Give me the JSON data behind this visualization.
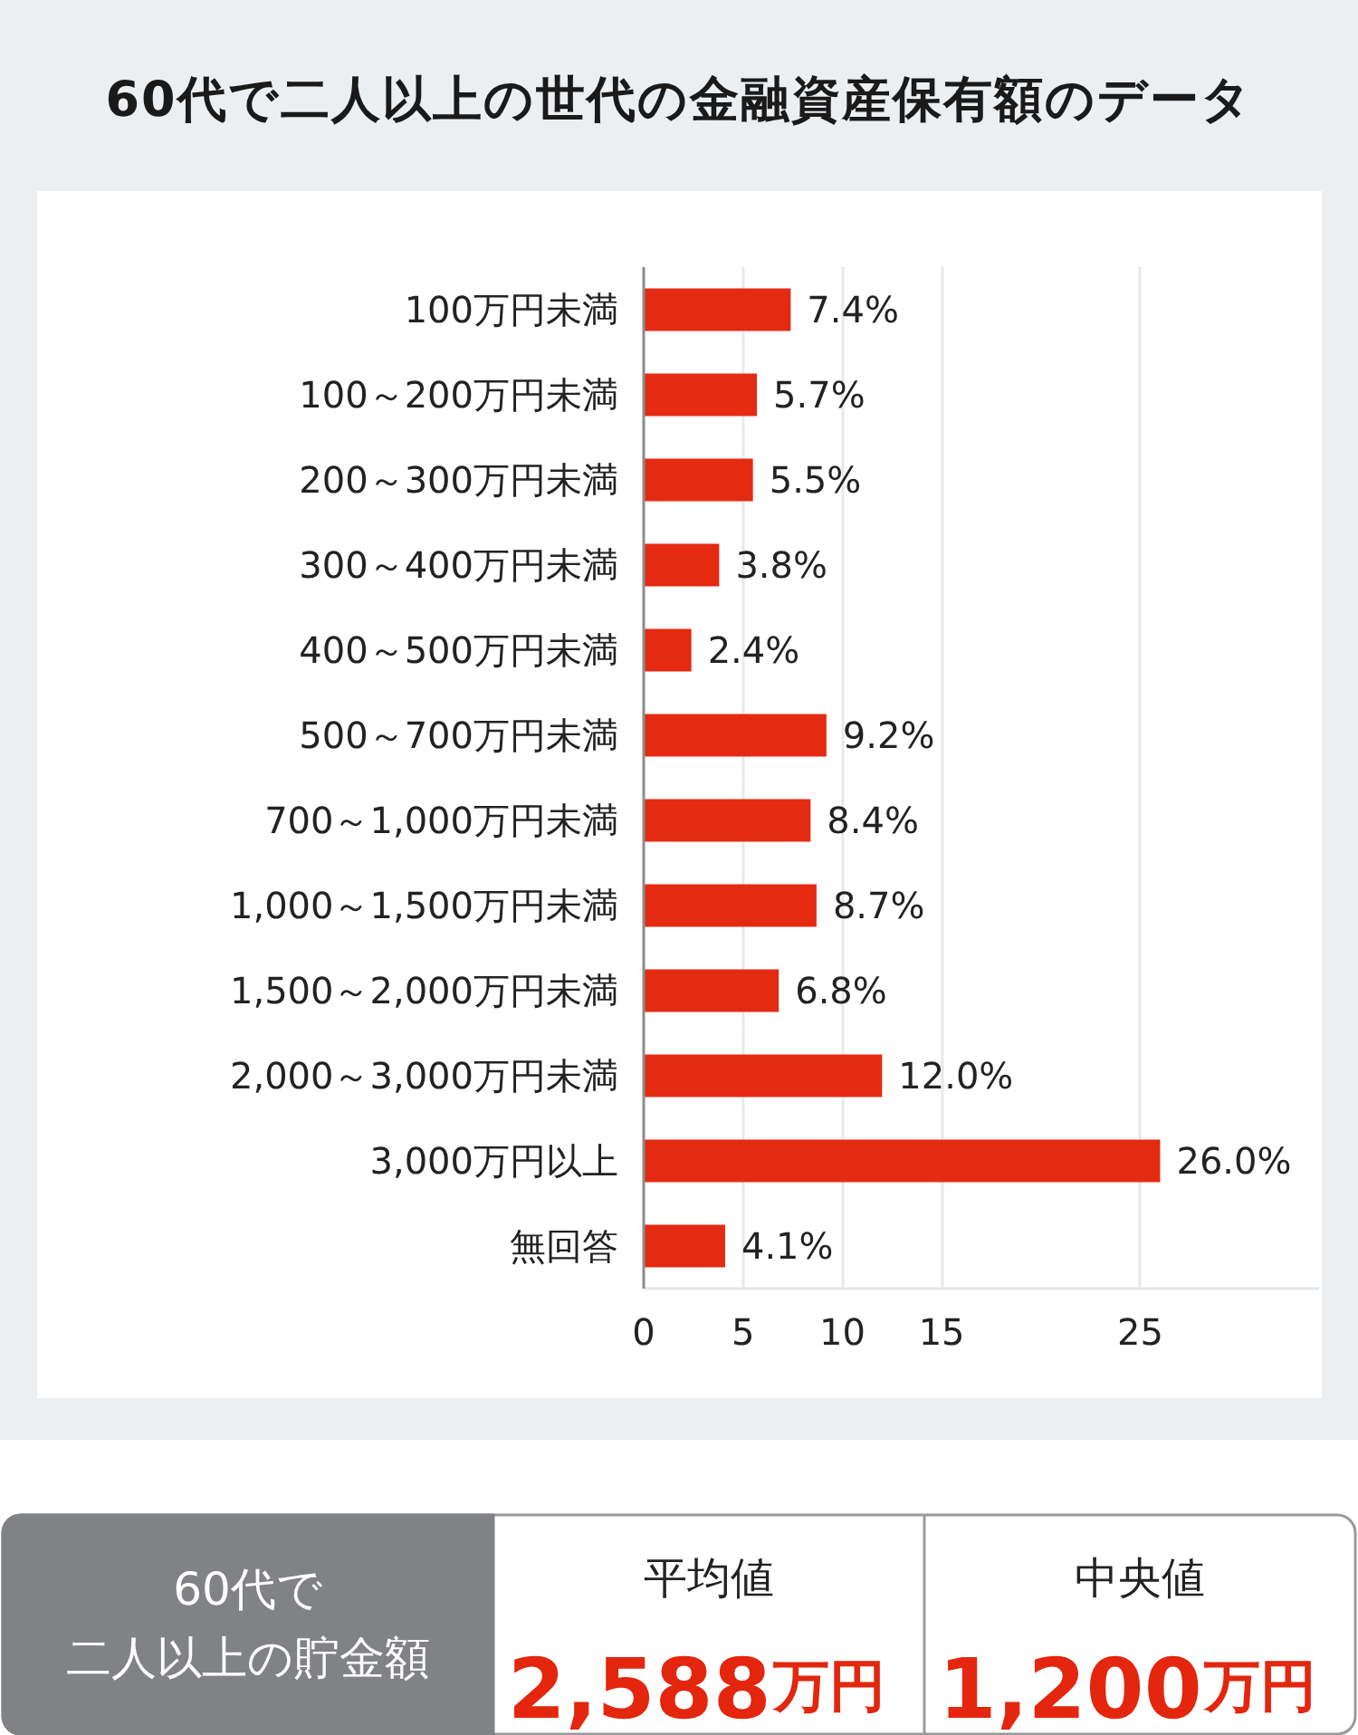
{
  "chart_data": [
    {
      "type": "bar",
      "title": "60代で二人以上の世代の金融資産保有額のデータ",
      "orientation": "horizontal",
      "categories": [
        "100万円未満",
        "100～200万円未満",
        "200～300万円未満",
        "300～400万円未満",
        "400～500万円未満",
        "500～700万円未満",
        "700～1,000万円未満",
        "1,000～1,500万円未満",
        "1,500～2,000万円未満",
        "2,000～3,000万円未満",
        "3,000万円以上",
        "無回答"
      ],
      "values": [
        7.4,
        5.7,
        5.5,
        3.8,
        2.4,
        9.2,
        8.4,
        8.7,
        6.8,
        12.0,
        26.0,
        4.1
      ],
      "value_labels": [
        "7.4%",
        "5.7%",
        "5.5%",
        "3.8%",
        "2.4%",
        "9.2%",
        "8.4%",
        "8.7%",
        "6.8%",
        "12.0%",
        "26.0%",
        "4.1%"
      ],
      "color": "#e52a12",
      "xlim": [
        0,
        34
      ],
      "xticks": [
        0,
        5,
        10,
        15,
        25
      ],
      "grid": "x"
    },
    {
      "type": "other",
      "title": "60代で",
      "subtitle": "二人以上の貯金額",
      "categories": [
        "平均値",
        "中央値"
      ],
      "values": [
        2588,
        1200
      ],
      "value_labels": [
        "2,588万円",
        "1,200万円"
      ]
    }
  ]
}
